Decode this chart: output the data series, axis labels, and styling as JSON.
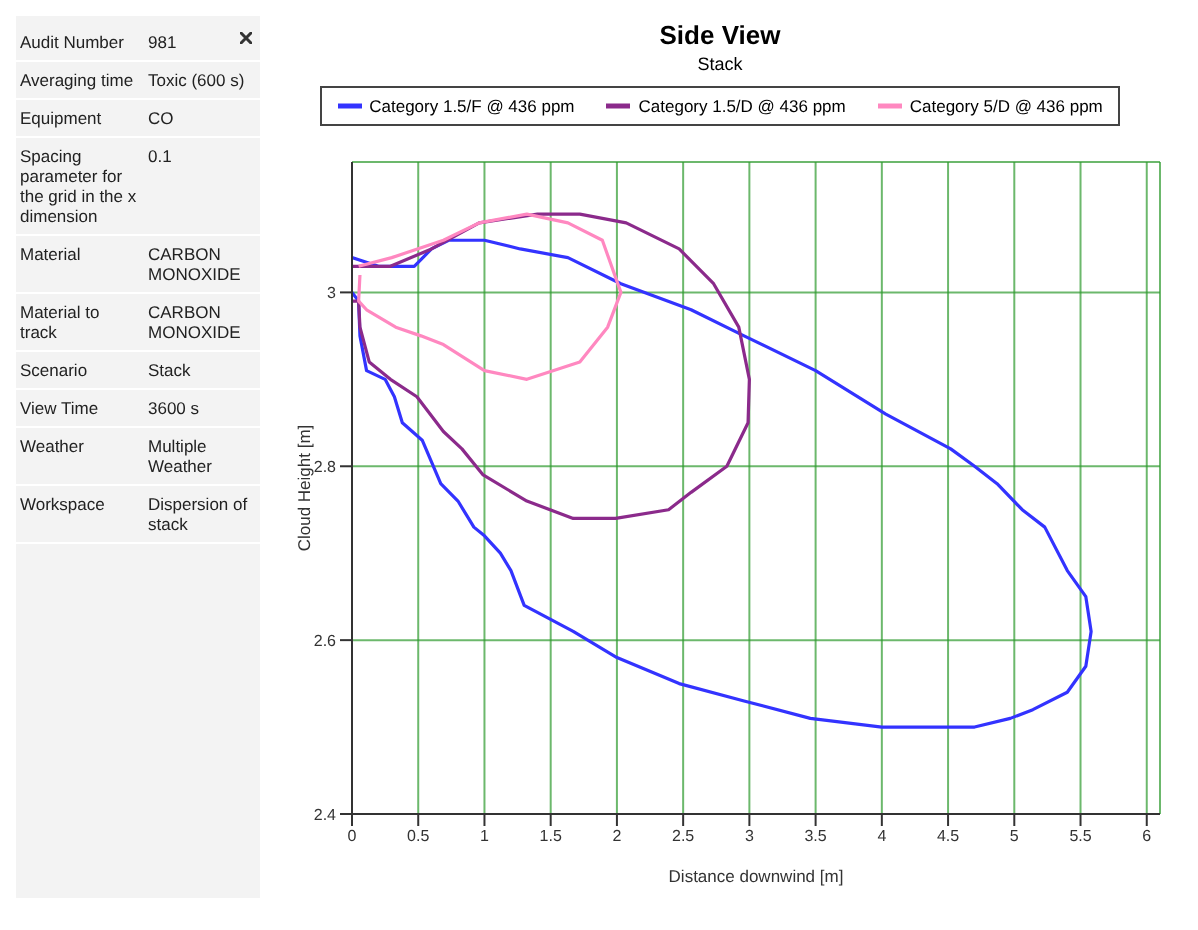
{
  "chart_data": [
    {
      "type": "other",
      "annotations": [
        "Audit Number",
        "981",
        "Averaging time",
        "Toxic (600 s)",
        "Equipment",
        "CO",
        "Spacing parameter for the grid in the x dimension",
        "0.1",
        "Material",
        "CARBON MONOXIDE",
        "Material to track",
        "CARBON MONOXIDE",
        "Scenario",
        "Stack",
        "View Time",
        "3600 s",
        "Weather",
        "Multiple Weather",
        "Workspace",
        "Dispersion of stack"
      ]
    },
    {
      "type": "line",
      "title": "Side View",
      "subtitle": "Stack",
      "xlabel": "Distance downwind [m]",
      "ylabel": "Cloud Height [m]",
      "xlim": [
        0,
        6.1
      ],
      "xticks": [
        0,
        0.5,
        1,
        1.5,
        2,
        2.5,
        3,
        3.5,
        4,
        4.5,
        5,
        5.5,
        6
      ],
      "ylim": [
        2.4,
        3.15
      ],
      "yticks": [
        2.4,
        2.6,
        2.8,
        3
      ],
      "grid": true,
      "legend": "top",
      "marker": "none",
      "series": [
        {
          "name": "Category 1.5/F @ 436 ppm",
          "color": "#3333ff",
          "x": [
            0,
            0.05,
            0.06,
            0.11,
            0.25,
            0.32,
            0.38,
            0.53,
            0.67,
            0.8,
            0.92,
            1.0,
            1.12,
            1.2,
            1.3,
            1.67,
            2.0,
            2.47,
            2.96,
            3.46,
            4.0,
            4.34,
            4.7,
            4.97,
            5.14,
            5.4,
            5.54,
            5.58,
            5.54,
            5.4,
            5.23,
            5.06,
            4.87,
            4.7,
            4.52,
            4.03,
            3.5,
            2.96,
            2.56,
            2.03,
            1.63,
            1.27,
            1.0,
            0.73,
            0.6,
            0.47,
            0.2,
            0
          ],
          "values": [
            3.0,
            2.99,
            2.95,
            2.91,
            2.9,
            2.88,
            2.85,
            2.83,
            2.78,
            2.76,
            2.73,
            2.72,
            2.7,
            2.68,
            2.64,
            2.61,
            2.58,
            2.55,
            2.53,
            2.51,
            2.5,
            2.5,
            2.5,
            2.51,
            2.52,
            2.54,
            2.57,
            2.61,
            2.65,
            2.68,
            2.73,
            2.75,
            2.78,
            2.8,
            2.82,
            2.86,
            2.91,
            2.95,
            2.98,
            3.01,
            3.04,
            3.05,
            3.06,
            3.06,
            3.05,
            3.03,
            3.03,
            3.04
          ]
        },
        {
          "name": "Category 1.5/D @ 436 ppm",
          "color": "#8b2a8b",
          "x": [
            0,
            0.29,
            0.6,
            0.96,
            1.4,
            1.72,
            2.07,
            2.47,
            2.73,
            2.92,
            3.0,
            2.99,
            2.83,
            2.56,
            2.39,
            1.99,
            1.67,
            1.32,
            0.99,
            0.83,
            0.69,
            0.49,
            0.29,
            0.13,
            0.06,
            0.05,
            0
          ],
          "values": [
            3.03,
            3.03,
            3.05,
            3.08,
            3.09,
            3.09,
            3.08,
            3.05,
            3.01,
            2.96,
            2.9,
            2.85,
            2.8,
            2.77,
            2.75,
            2.74,
            2.74,
            2.76,
            2.79,
            2.82,
            2.84,
            2.88,
            2.9,
            2.92,
            2.96,
            2.99,
            2.99
          ]
        },
        {
          "name": "Category 5/D @ 436 ppm",
          "color": "#ff88c0",
          "x": [
            0.05,
            0.3,
            0.69,
            0.96,
            1.32,
            1.63,
            1.89,
            2.03,
            1.93,
            1.72,
            1.32,
            1.0,
            0.69,
            0.52,
            0.33,
            0.11,
            0.05,
            0.06
          ],
          "values": [
            3.03,
            3.04,
            3.06,
            3.08,
            3.09,
            3.08,
            3.06,
            3.0,
            2.96,
            2.92,
            2.9,
            2.91,
            2.94,
            2.95,
            2.96,
            2.98,
            2.99,
            3.02
          ]
        }
      ]
    }
  ]
}
